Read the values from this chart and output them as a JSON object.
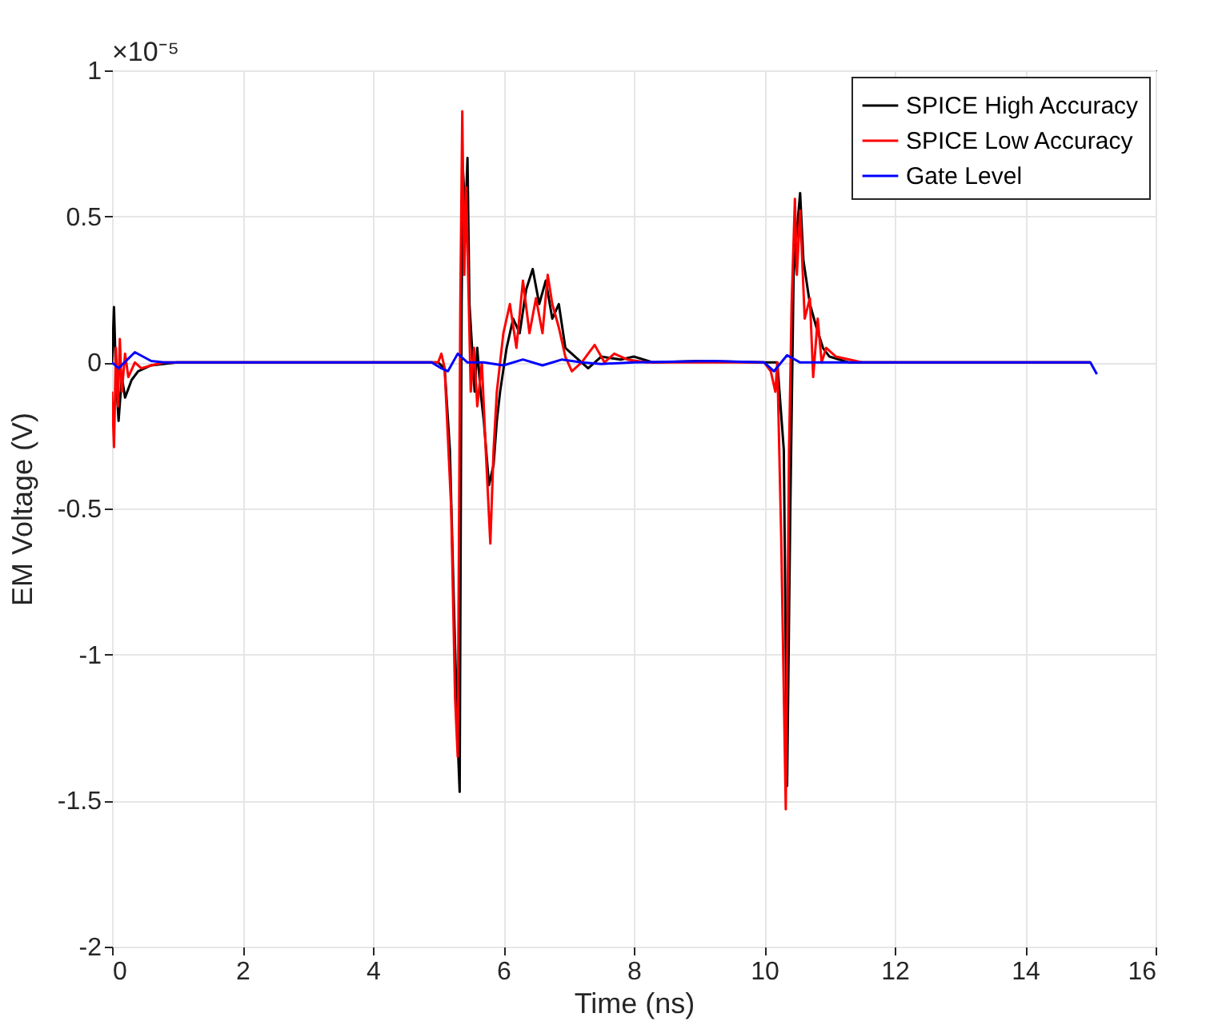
{
  "chart_data": {
    "type": "line",
    "xlabel": "Time (ns)",
    "ylabel": "EM Voltage (V)",
    "annotations": [
      "×10⁻⁵"
    ],
    "xlim": [
      0,
      16
    ],
    "xticks": [
      0,
      2,
      4,
      6,
      8,
      10,
      12,
      14,
      16
    ],
    "ylim": [
      -2,
      1
    ],
    "yticks": [
      -2,
      -1.5,
      -1,
      -0.5,
      0,
      0.5,
      1
    ],
    "grid": true,
    "legend": "top right",
    "series": [
      {
        "name": "SPICE High Accuracy",
        "color": "#000000",
        "x": [
          0,
          0.03,
          0.06,
          0.1,
          0.15,
          0.2,
          0.3,
          0.4,
          0.6,
          1,
          5,
          5.1,
          5.18,
          5.25,
          5.3,
          5.33,
          5.36,
          5.38,
          5.42,
          5.45,
          5.48,
          5.52,
          5.56,
          5.6,
          5.65,
          5.7,
          5.78,
          5.85,
          5.9,
          5.95,
          6.05,
          6.15,
          6.25,
          6.35,
          6.45,
          6.55,
          6.65,
          6.75,
          6.85,
          6.95,
          7.1,
          7.3,
          7.5,
          7.8,
          8.0,
          8.3,
          9,
          10,
          10.2,
          10.3,
          10.35,
          10.4,
          10.45,
          10.5,
          10.55,
          10.6,
          10.7,
          10.8,
          10.9,
          11,
          11.3,
          15
        ],
        "values": [
          0,
          0.19,
          -0.05,
          -0.2,
          -0.05,
          -0.12,
          -0.06,
          -0.03,
          -0.01,
          0,
          0,
          -0.02,
          -0.3,
          -0.9,
          -1.3,
          -1.47,
          0.2,
          0.66,
          0.5,
          0.7,
          0.2,
          0.05,
          -0.1,
          0.05,
          -0.1,
          -0.2,
          -0.42,
          -0.35,
          -0.2,
          -0.1,
          0.05,
          0.15,
          0.1,
          0.25,
          0.32,
          0.2,
          0.28,
          0.15,
          0.2,
          0.05,
          0.02,
          -0.02,
          0.02,
          0.01,
          0.02,
          0,
          0.005,
          0,
          0,
          -0.3,
          -1.45,
          -0.5,
          0.3,
          0.45,
          0.58,
          0.35,
          0.2,
          0.12,
          0.05,
          0.02,
          0,
          0
        ]
      },
      {
        "name": "SPICE Low Accuracy",
        "color": "#ff0000",
        "x": [
          0,
          0.03,
          0.06,
          0.09,
          0.12,
          0.15,
          0.2,
          0.25,
          0.35,
          0.45,
          0.6,
          0.8,
          5,
          5.05,
          5.1,
          5.2,
          5.26,
          5.3,
          5.34,
          5.37,
          5.4,
          5.43,
          5.47,
          5.5,
          5.55,
          5.6,
          5.67,
          5.73,
          5.8,
          5.85,
          5.9,
          6,
          6.1,
          6.2,
          6.3,
          6.4,
          6.5,
          6.6,
          6.68,
          6.75,
          6.85,
          6.95,
          7.05,
          7.2,
          7.4,
          7.55,
          7.7,
          7.9,
          8.2,
          10,
          10.1,
          10.17,
          10.2,
          10.26,
          10.33,
          10.38,
          10.42,
          10.47,
          10.5,
          10.55,
          10.62,
          10.7,
          10.75,
          10.82,
          10.88,
          10.95,
          11.1,
          11.5,
          15
        ],
        "values": [
          -0.1,
          -0.29,
          0.05,
          -0.15,
          0.08,
          -0.1,
          0.03,
          -0.05,
          0,
          -0.02,
          -0.01,
          0,
          0,
          0.03,
          -0.02,
          -0.5,
          -1.15,
          -1.35,
          0.2,
          0.86,
          0.3,
          0.6,
          0.2,
          -0.1,
          0.05,
          -0.15,
          0,
          -0.3,
          -0.62,
          -0.3,
          -0.1,
          0.1,
          0.2,
          0.05,
          0.28,
          0.1,
          0.22,
          0.1,
          0.3,
          0.2,
          0.12,
          0.02,
          -0.03,
          0,
          0.06,
          0,
          0.03,
          0.01,
          0,
          0,
          -0.03,
          -0.1,
          0,
          -0.6,
          -1.53,
          -0.3,
          0.2,
          0.56,
          0.3,
          0.52,
          0.15,
          0.22,
          -0.05,
          0.15,
          0,
          0.05,
          0.02,
          0,
          0
        ]
      },
      {
        "name": "Gate Level",
        "color": "#0000ff",
        "x": [
          0,
          0.1,
          0.35,
          0.6,
          0.8,
          4.9,
          5.05,
          5.15,
          5.3,
          5.45,
          5.7,
          6.0,
          6.3,
          6.6,
          6.9,
          7.2,
          7.5,
          8,
          9.2,
          10,
          10.15,
          10.35,
          10.55,
          15,
          15.1
        ],
        "values": [
          0,
          -0.02,
          0.035,
          0.005,
          0,
          0,
          -0.02,
          -0.03,
          0.03,
          0,
          0,
          -0.01,
          0.01,
          -0.01,
          0.01,
          0,
          -0.005,
          0,
          0.005,
          0,
          -0.03,
          0.025,
          0,
          0,
          -0.04
        ]
      }
    ]
  }
}
